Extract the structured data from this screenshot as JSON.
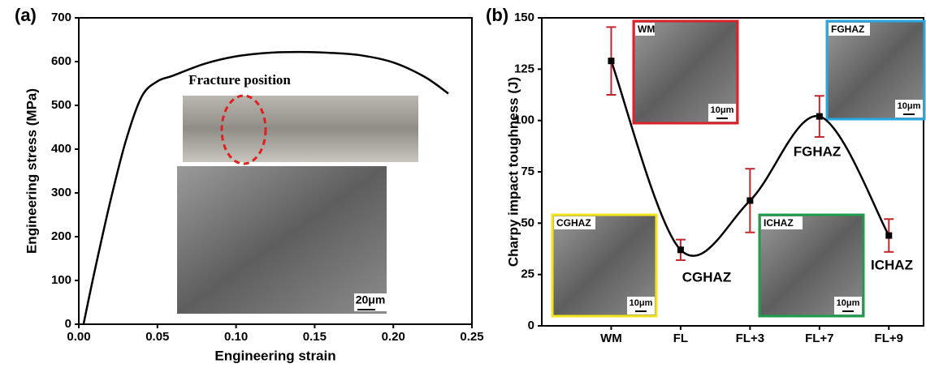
{
  "chart_data": [
    {
      "type": "line",
      "panel_label": "(a)",
      "x_label": "Engineering strain",
      "y_label": "Engineering stress (MPa)",
      "x": [
        0.003,
        0.01,
        0.02,
        0.03,
        0.04,
        0.05,
        0.06,
        0.08,
        0.1,
        0.12,
        0.14,
        0.16,
        0.18,
        0.2,
        0.22,
        0.235
      ],
      "values": [
        0,
        120,
        280,
        420,
        520,
        555,
        568,
        595,
        612,
        620,
        622,
        620,
        614,
        598,
        565,
        527
      ],
      "color": "#000000",
      "xlim": [
        0,
        0.25
      ],
      "xticks": [
        {
          "value": 0,
          "label": "0.00"
        },
        {
          "value": 0.05,
          "label": "0.05"
        },
        {
          "value": 0.1,
          "label": "0.10"
        },
        {
          "value": 0.15,
          "label": "0.15"
        },
        {
          "value": 0.2,
          "label": "0.20"
        },
        {
          "value": 0.25,
          "label": "0.25"
        }
      ],
      "ylim": [
        0,
        700
      ],
      "yticks": [
        0,
        100,
        200,
        300,
        400,
        500,
        600,
        700
      ],
      "annotations": [
        "Fracture position",
        "20μm"
      ]
    },
    {
      "type": "errorline",
      "panel_label": "(b)",
      "y_label": "Charpy impact toughness (J)",
      "categories": [
        "WM",
        "FL",
        "FL+3",
        "FL+7",
        "FL+9"
      ],
      "values": [
        129,
        37,
        61,
        102,
        44
      ],
      "errors": [
        16.5,
        5,
        15.5,
        10,
        8
      ],
      "color": "#000000",
      "error_color": "#c0272d",
      "ylim": [
        0,
        150
      ],
      "yticks": [
        0,
        25,
        50,
        75,
        100,
        125,
        150
      ],
      "annotations": [
        "CGHAZ",
        "FGHAZ",
        "ICHAZ"
      ],
      "insets": [
        {
          "label": "WM",
          "scale": "10μm",
          "color": "#d9232a"
        },
        {
          "label": "FGHAZ",
          "scale": "10μm",
          "color": "#29a8e0"
        },
        {
          "label": "CGHAZ",
          "scale": "10μm",
          "color": "#f2e41c"
        },
        {
          "label": "ICHAZ",
          "scale": "10μm",
          "color": "#1e9b4b"
        }
      ]
    }
  ]
}
